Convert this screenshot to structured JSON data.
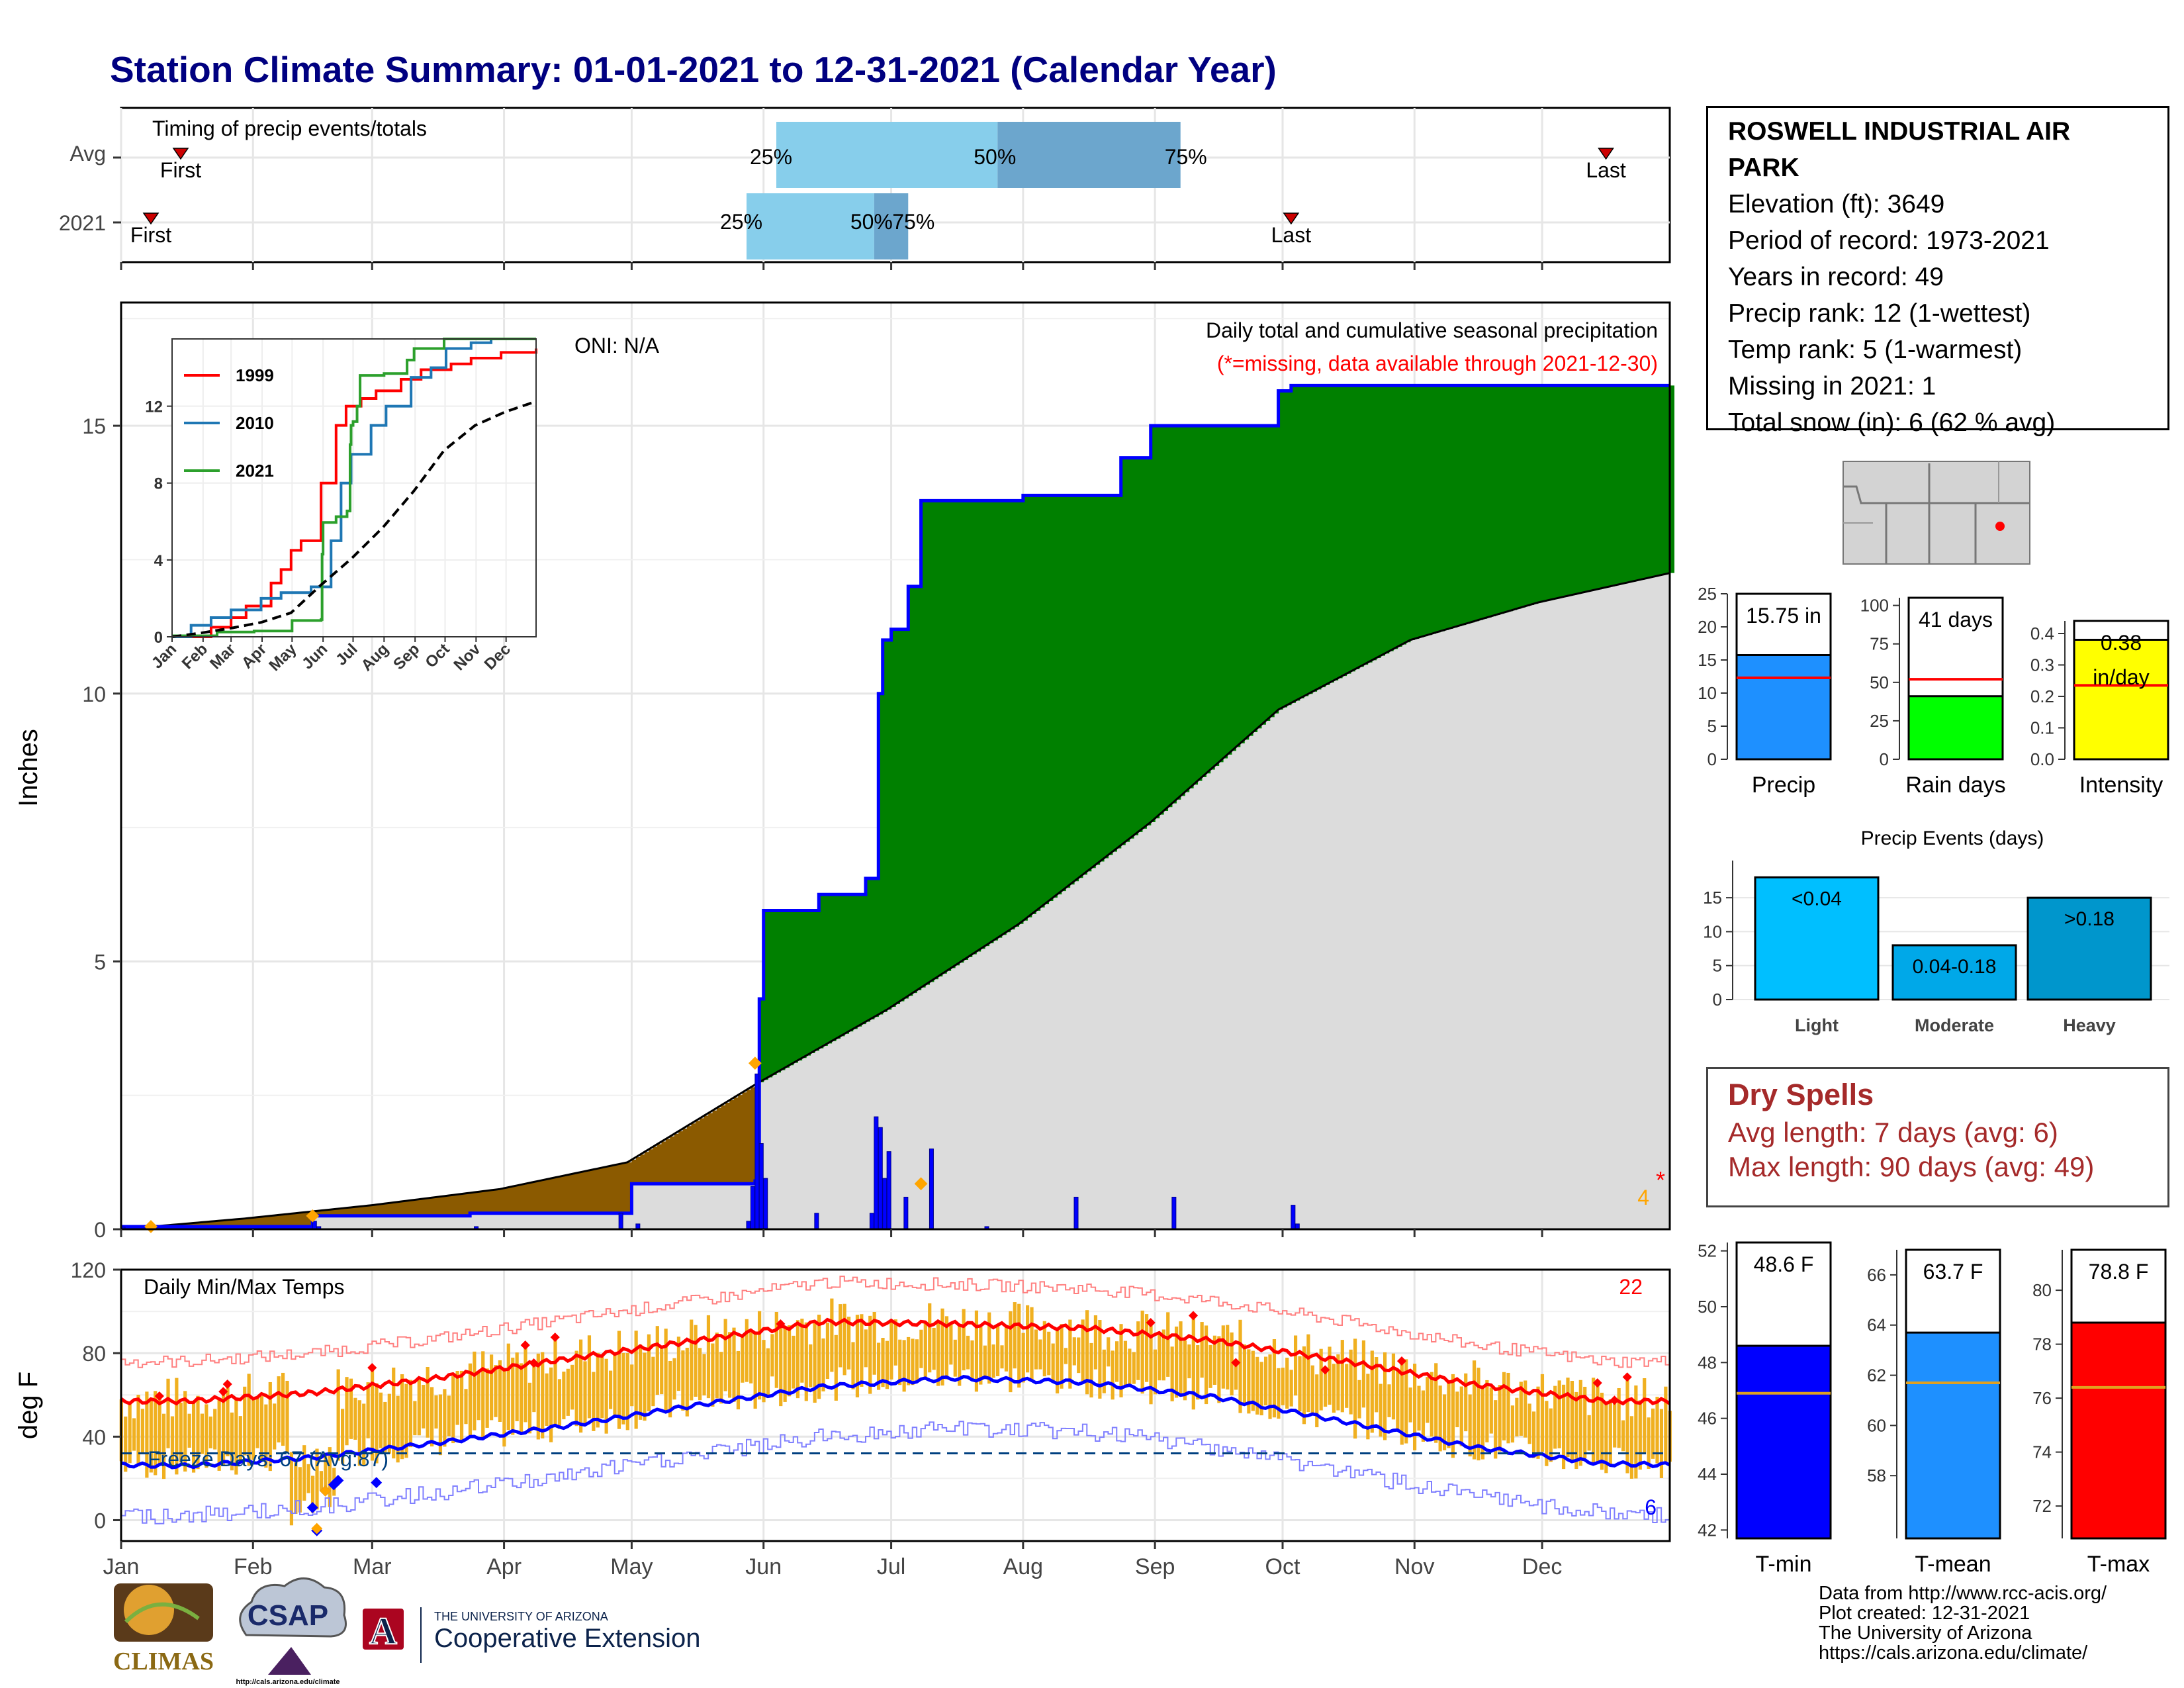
{
  "title": "Station Climate Summary: 01-01-2021 to 12-31-2021 (Calendar Year)",
  "station": {
    "name": "ROSWELL INDUSTRIAL AIR PARK",
    "info_lines": [
      "Elevation (ft): 3649",
      "Period of record: 1973-2021",
      "Years in record: 49",
      "Precip rank: 12 (1-wettest)",
      "Temp rank: 5 (1-warmest)",
      "Missing in 2021: 1",
      "Total snow (in): 6 (62 % avg)"
    ]
  },
  "dry_spells": {
    "title": "Dry Spells",
    "avg_line": "Avg length: 7 days (avg: 6)",
    "max_line": "Max length: 90 days (avg: 49)"
  },
  "footer": {
    "lines": [
      "Data from http://www.rcc-acis.org/",
      "Plot created: 12-31-2021",
      "The University of Arizona",
      "https://cals.arizona.edu/climate/"
    ]
  },
  "logos": {
    "climas": "CLIMAS",
    "csap": "CSAP",
    "csap_url": "http://cals.arizona.edu/climate",
    "ua_line1": "THE UNIVERSITY OF ARIZONA",
    "ua_line2": "Cooperative Extension",
    "ua_letter": "A"
  },
  "colors": {
    "title": "#000080",
    "precip_green": "#008000",
    "precip_brown": "#8b5a00",
    "avg_grey": "#dcdcdc",
    "blue_line": "#0000ff",
    "temp_bar": "#f0b020",
    "tmin": "#0000ff",
    "tmean": "#1e90ff",
    "tmax": "#ff0000",
    "rain_days": "#00ff00",
    "intensity": "#ffff00",
    "light_events": "#00bfff",
    "moderate_events": "#00a8e8",
    "heavy_events": "#0096cc",
    "timing_light": "#87ceeb",
    "timing_dark": "#6ca6cd"
  },
  "chart_data": [
    {
      "id": "timing",
      "type": "bar",
      "label": "Timing of precip events/totals",
      "categories": [
        "Avg",
        "2021"
      ],
      "month_labels": [
        "Jan",
        "Feb",
        "Mar",
        "Apr",
        "May",
        "Jun",
        "Jul",
        "Aug",
        "Sep",
        "Oct",
        "Nov",
        "Dec"
      ],
      "rows": [
        {
          "name": "Avg",
          "first_doy": 15,
          "p25_doy": 155,
          "p50_doy": 207,
          "p75_doy": 250,
          "last_doy": 350,
          "labels": [
            "First",
            "25%",
            "50%",
            "75%",
            "Last"
          ]
        },
        {
          "name": "2021",
          "first_doy": 8,
          "p25_doy": 148,
          "p50_doy": 178,
          "p75_doy": 186,
          "last_doy": 276,
          "labels": [
            "First",
            "25%",
            "50%",
            "75%",
            "Last"
          ]
        }
      ]
    },
    {
      "id": "precip",
      "type": "area",
      "title": "Daily total and cumulative seasonal precipitation",
      "subtitle": "(*=missing, data available through 2021-12-30)",
      "oni": "ONI: N/A",
      "ylabel": "Inches",
      "ylim": [
        0,
        17.3
      ],
      "yticks": [
        0,
        5,
        10,
        15
      ],
      "xticks": [
        "Jan",
        "Feb",
        "Mar",
        "Apr",
        "May",
        "Jun",
        "Jul",
        "Aug",
        "Sep",
        "Oct",
        "Nov",
        "Dec"
      ],
      "missing_note": "4",
      "missing_star": "*",
      "cumulative_2021": [
        [
          1,
          0.05
        ],
        [
          46,
          0.25
        ],
        [
          83,
          0.3
        ],
        [
          121,
          0.85
        ],
        [
          150,
          0.9
        ],
        [
          151,
          4.3
        ],
        [
          152,
          5.95
        ],
        [
          164,
          5.95
        ],
        [
          165,
          6.25
        ],
        [
          175,
          6.25
        ],
        [
          176,
          6.55
        ],
        [
          179,
          10.0
        ],
        [
          180,
          11.0
        ],
        [
          182,
          11.2
        ],
        [
          185,
          11.2
        ],
        [
          186,
          12.0
        ],
        [
          189,
          13.6
        ],
        [
          213,
          13.7
        ],
        [
          235,
          13.7
        ],
        [
          236,
          14.4
        ],
        [
          242,
          14.4
        ],
        [
          243,
          15.0
        ],
        [
          272,
          15.0
        ],
        [
          273,
          15.65
        ],
        [
          276,
          15.75
        ],
        [
          365,
          15.75
        ]
      ],
      "cumulative_avg": [
        [
          1,
          0.0
        ],
        [
          30,
          0.2
        ],
        [
          60,
          0.45
        ],
        [
          90,
          0.75
        ],
        [
          120,
          1.25
        ],
        [
          150,
          2.7
        ],
        [
          181,
          4.1
        ],
        [
          212,
          5.7
        ],
        [
          243,
          7.6
        ],
        [
          273,
          9.7
        ],
        [
          304,
          11.0
        ],
        [
          334,
          11.7
        ],
        [
          365,
          12.25
        ]
      ],
      "daily_2021": [
        [
          1,
          0.04
        ],
        [
          46,
          0.15
        ],
        [
          47,
          0.05
        ],
        [
          84,
          0.05
        ],
        [
          118,
          0.3
        ],
        [
          122,
          0.1
        ],
        [
          148,
          0.15
        ],
        [
          149,
          0.8
        ],
        [
          150,
          2.9
        ],
        [
          151,
          1.6
        ],
        [
          152,
          0.95
        ],
        [
          164,
          0.3
        ],
        [
          177,
          0.3
        ],
        [
          178,
          2.1
        ],
        [
          179,
          1.9
        ],
        [
          180,
          0.95
        ],
        [
          181,
          1.45
        ],
        [
          185,
          0.6
        ],
        [
          191,
          1.5
        ],
        [
          204,
          0.05
        ],
        [
          225,
          0.6
        ],
        [
          248,
          0.6
        ],
        [
          276,
          0.45
        ],
        [
          277,
          0.1
        ]
      ]
    },
    {
      "id": "precip_inset",
      "type": "line",
      "series": [
        {
          "name": "1999",
          "color": "#ff0000"
        },
        {
          "name": "2010",
          "color": "#1f77b4"
        },
        {
          "name": "2021",
          "color": "#2ca02c"
        }
      ],
      "yticks": [
        0,
        4,
        8,
        12
      ],
      "xticks": [
        "Jan",
        "Feb",
        "Mar",
        "Apr",
        "May",
        "Jun",
        "Jul",
        "Aug",
        "Sep",
        "Oct",
        "Nov",
        "Dec"
      ],
      "ylim": [
        0,
        15.5
      ]
    },
    {
      "id": "temps",
      "type": "line",
      "title": "Daily Min/Max Temps",
      "ylabel": "deg F",
      "ylim": [
        -10,
        120
      ],
      "yticks": [
        0,
        40,
        80,
        120
      ],
      "xticks": [
        "Jan",
        "Feb",
        "Mar",
        "Apr",
        "May",
        "Jun",
        "Jul",
        "Aug",
        "Sep",
        "Oct",
        "Nov",
        "Dec"
      ],
      "freeze_label": "Freeze Days: 67 (Avg:87)",
      "freeze_line": 32,
      "count_top": "22",
      "count_bottom": "6",
      "avg_max_monthly": [
        57,
        61,
        68,
        77,
        86,
        95,
        94,
        92,
        86,
        76,
        65,
        57
      ],
      "avg_min_monthly": [
        26,
        30,
        37,
        45,
        55,
        64,
        68,
        66,
        59,
        47,
        35,
        27
      ]
    },
    {
      "id": "precip_totals",
      "type": "bar",
      "categories": [
        "Precip",
        "Rain days",
        "Intensity"
      ],
      "values": [
        15.75,
        41,
        0.38
      ],
      "averages": [
        12.3,
        52,
        0.235
      ],
      "labels": [
        "15.75 in",
        "41 days",
        "0.38"
      ],
      "intensity_unit": "in/day",
      "ylims": [
        [
          0,
          25
        ],
        [
          0,
          105
        ],
        [
          0,
          0.44
        ]
      ],
      "yticks": [
        [
          0,
          5,
          10,
          15,
          20,
          25
        ],
        [
          0,
          25,
          50,
          75,
          100
        ],
        [
          0.0,
          0.1,
          0.2,
          0.3,
          0.4
        ]
      ]
    },
    {
      "id": "precip_events",
      "type": "bar",
      "title": "Precip Events (days)",
      "categories": [
        "Light",
        "Moderate",
        "Heavy"
      ],
      "values": [
        18,
        8,
        15
      ],
      "bar_labels": [
        "<0.04",
        "0.04-0.18",
        ">0.18"
      ],
      "ylim": [
        0,
        19.5
      ],
      "yticks": [
        0,
        5,
        10,
        15
      ]
    },
    {
      "id": "temp_totals",
      "type": "bar",
      "categories": [
        "T-min",
        "T-mean",
        "T-max"
      ],
      "values": [
        48.6,
        63.7,
        78.8
      ],
      "labels": [
        "48.6 F",
        "63.7 F",
        "78.8 F"
      ],
      "averages": [
        46.9,
        61.7,
        76.4
      ],
      "ylims": [
        [
          41.7,
          52.3
        ],
        [
          55.5,
          67.0
        ],
        [
          70.8,
          81.5
        ]
      ],
      "yticks": [
        [
          42,
          44,
          46,
          48,
          50,
          52
        ],
        [
          58,
          60,
          62,
          64,
          66
        ],
        [
          72,
          74,
          76,
          78,
          80
        ]
      ]
    }
  ]
}
